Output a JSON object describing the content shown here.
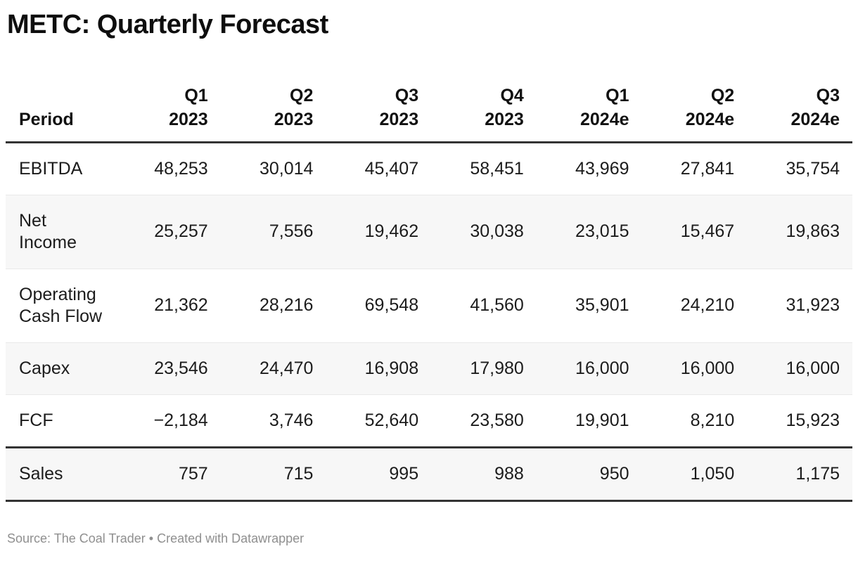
{
  "chart_data": {
    "type": "table",
    "title": "METC: Quarterly Forecast",
    "row_header_label": "Period",
    "columns": [
      {
        "quarter": "Q1",
        "year": "2023"
      },
      {
        "quarter": "Q2",
        "year": "2023"
      },
      {
        "quarter": "Q3",
        "year": "2023"
      },
      {
        "quarter": "Q4",
        "year": "2023"
      },
      {
        "quarter": "Q1",
        "year": "2024e"
      },
      {
        "quarter": "Q2",
        "year": "2024e"
      },
      {
        "quarter": "Q3",
        "year": "2024e"
      }
    ],
    "rows": [
      {
        "label": "EBITDA",
        "values": [
          "48,253",
          "30,014",
          "45,407",
          "58,451",
          "43,969",
          "27,841",
          "35,754"
        ],
        "numeric": [
          48253,
          30014,
          45407,
          58451,
          43969,
          27841,
          35754
        ]
      },
      {
        "label": "Net Income",
        "values": [
          "25,257",
          "7,556",
          "19,462",
          "30,038",
          "23,015",
          "15,467",
          "19,863"
        ],
        "numeric": [
          25257,
          7556,
          19462,
          30038,
          23015,
          15467,
          19863
        ]
      },
      {
        "label": "Operating Cash Flow",
        "values": [
          "21,362",
          "28,216",
          "69,548",
          "41,560",
          "35,901",
          "24,210",
          "31,923"
        ],
        "numeric": [
          21362,
          28216,
          69548,
          41560,
          35901,
          24210,
          31923
        ]
      },
      {
        "label": "Capex",
        "values": [
          "23,546",
          "24,470",
          "16,908",
          "17,980",
          "16,000",
          "16,000",
          "16,000"
        ],
        "numeric": [
          23546,
          24470,
          16908,
          17980,
          16000,
          16000,
          16000
        ]
      },
      {
        "label": "FCF",
        "values": [
          "−2,184",
          "3,746",
          "52,640",
          "23,580",
          "19,901",
          "8,210",
          "15,923"
        ],
        "numeric": [
          -2184,
          3746,
          52640,
          23580,
          19901,
          8210,
          15923
        ]
      },
      {
        "label": "Sales",
        "values": [
          "757",
          "715",
          "995",
          "988",
          "950",
          "1,050",
          "1,175"
        ],
        "numeric": [
          757,
          715,
          995,
          988,
          950,
          1050,
          1175
        ]
      }
    ]
  },
  "footer": {
    "source": "Source: The Coal Trader • Created with Datawrapper"
  },
  "colors": {
    "stripe": "#f7f7f7",
    "dark_border": "#333333",
    "text": "#1c1c1c",
    "footer_text": "#8f8f8f"
  }
}
